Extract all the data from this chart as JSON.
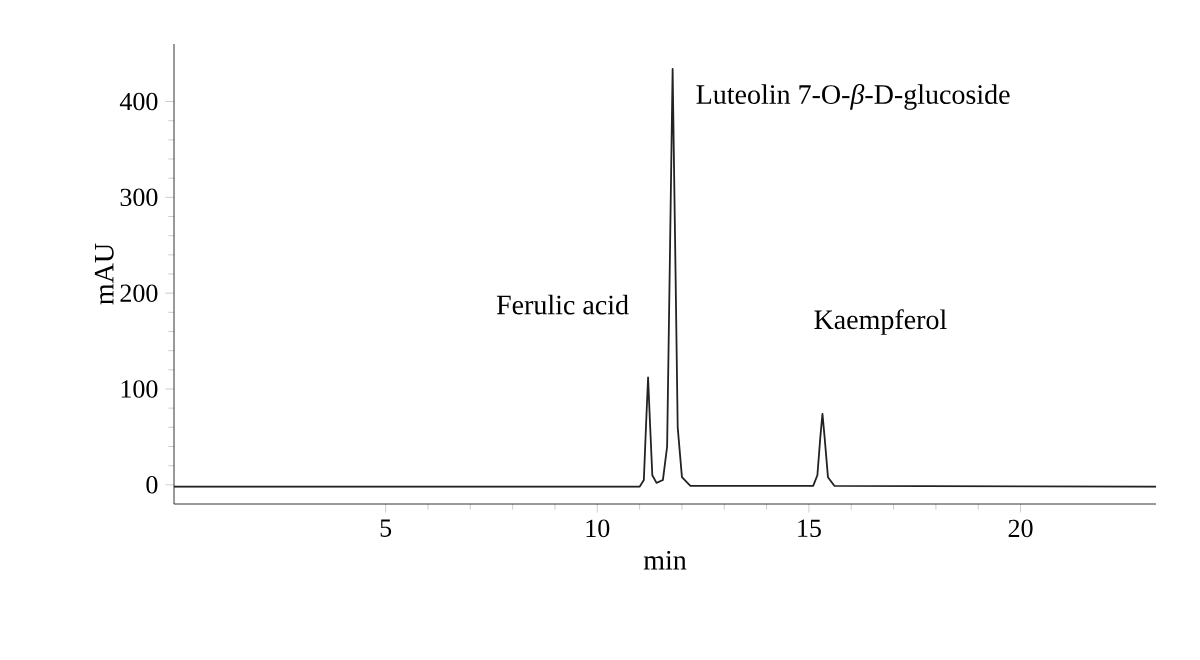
{
  "chart_data": {
    "type": "line",
    "xlabel": "min",
    "ylabel": "mAU",
    "x": [
      0,
      11.0,
      11.1,
      11.15,
      11.2,
      11.25,
      11.3,
      11.4,
      11.55,
      11.65,
      11.72,
      11.78,
      11.84,
      11.9,
      12.0,
      12.2,
      15.1,
      15.2,
      15.27,
      15.32,
      15.37,
      15.45,
      15.6,
      23.2
    ],
    "series": [
      {
        "color": "#222222",
        "values": [
          -2,
          -2,
          5,
          60,
          112,
          60,
          10,
          2,
          5,
          40,
          250,
          434,
          250,
          60,
          8,
          -1,
          -1,
          10,
          50,
          74,
          50,
          8,
          -1,
          -2
        ]
      }
    ],
    "xlim": [
      0,
      23.2
    ],
    "ylim": [
      -20,
      460
    ],
    "xticks": [
      5,
      10,
      15,
      20
    ],
    "yticks": [
      0,
      100,
      200,
      300,
      400
    ],
    "annotations": [
      {
        "text": "Ferulic acid",
        "x": 11.2,
        "y": 112
      },
      {
        "text": "Luteolin 7-O-*β*-D-glucoside",
        "x": 11.78,
        "y": 434
      },
      {
        "text": "Kaempferol",
        "x": 15.32,
        "y": 74
      }
    ],
    "grid": false,
    "marker": "none",
    "line_style": "solid"
  }
}
